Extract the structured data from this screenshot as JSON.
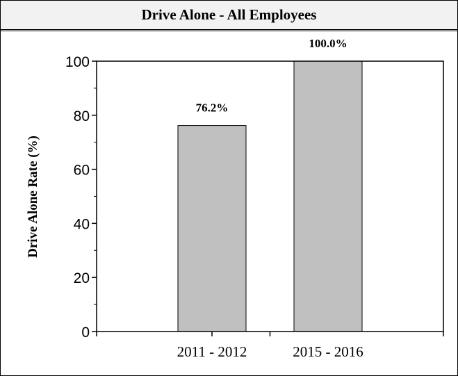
{
  "chart_data": {
    "type": "bar",
    "title": "Drive Alone - All Employees",
    "xlabel": "",
    "ylabel": "Drive Alone Rate (%)",
    "categories": [
      "2011 - 2012",
      "2015 - 2016"
    ],
    "values": [
      76.2,
      100.0
    ],
    "data_labels": [
      "76.2%",
      "100.0%"
    ],
    "ylim": [
      0,
      100
    ],
    "yticks": [
      0,
      20,
      40,
      60,
      80,
      100
    ],
    "ytick_labels": [
      "0",
      "20",
      "40",
      "60",
      "80",
      "100"
    ],
    "grid": false,
    "legend": "none",
    "colors": {
      "bar_fill": "#c0c0c0",
      "bar_stroke": "#000000",
      "axis": "#000000",
      "title_bg": "#f2f2f2"
    }
  }
}
